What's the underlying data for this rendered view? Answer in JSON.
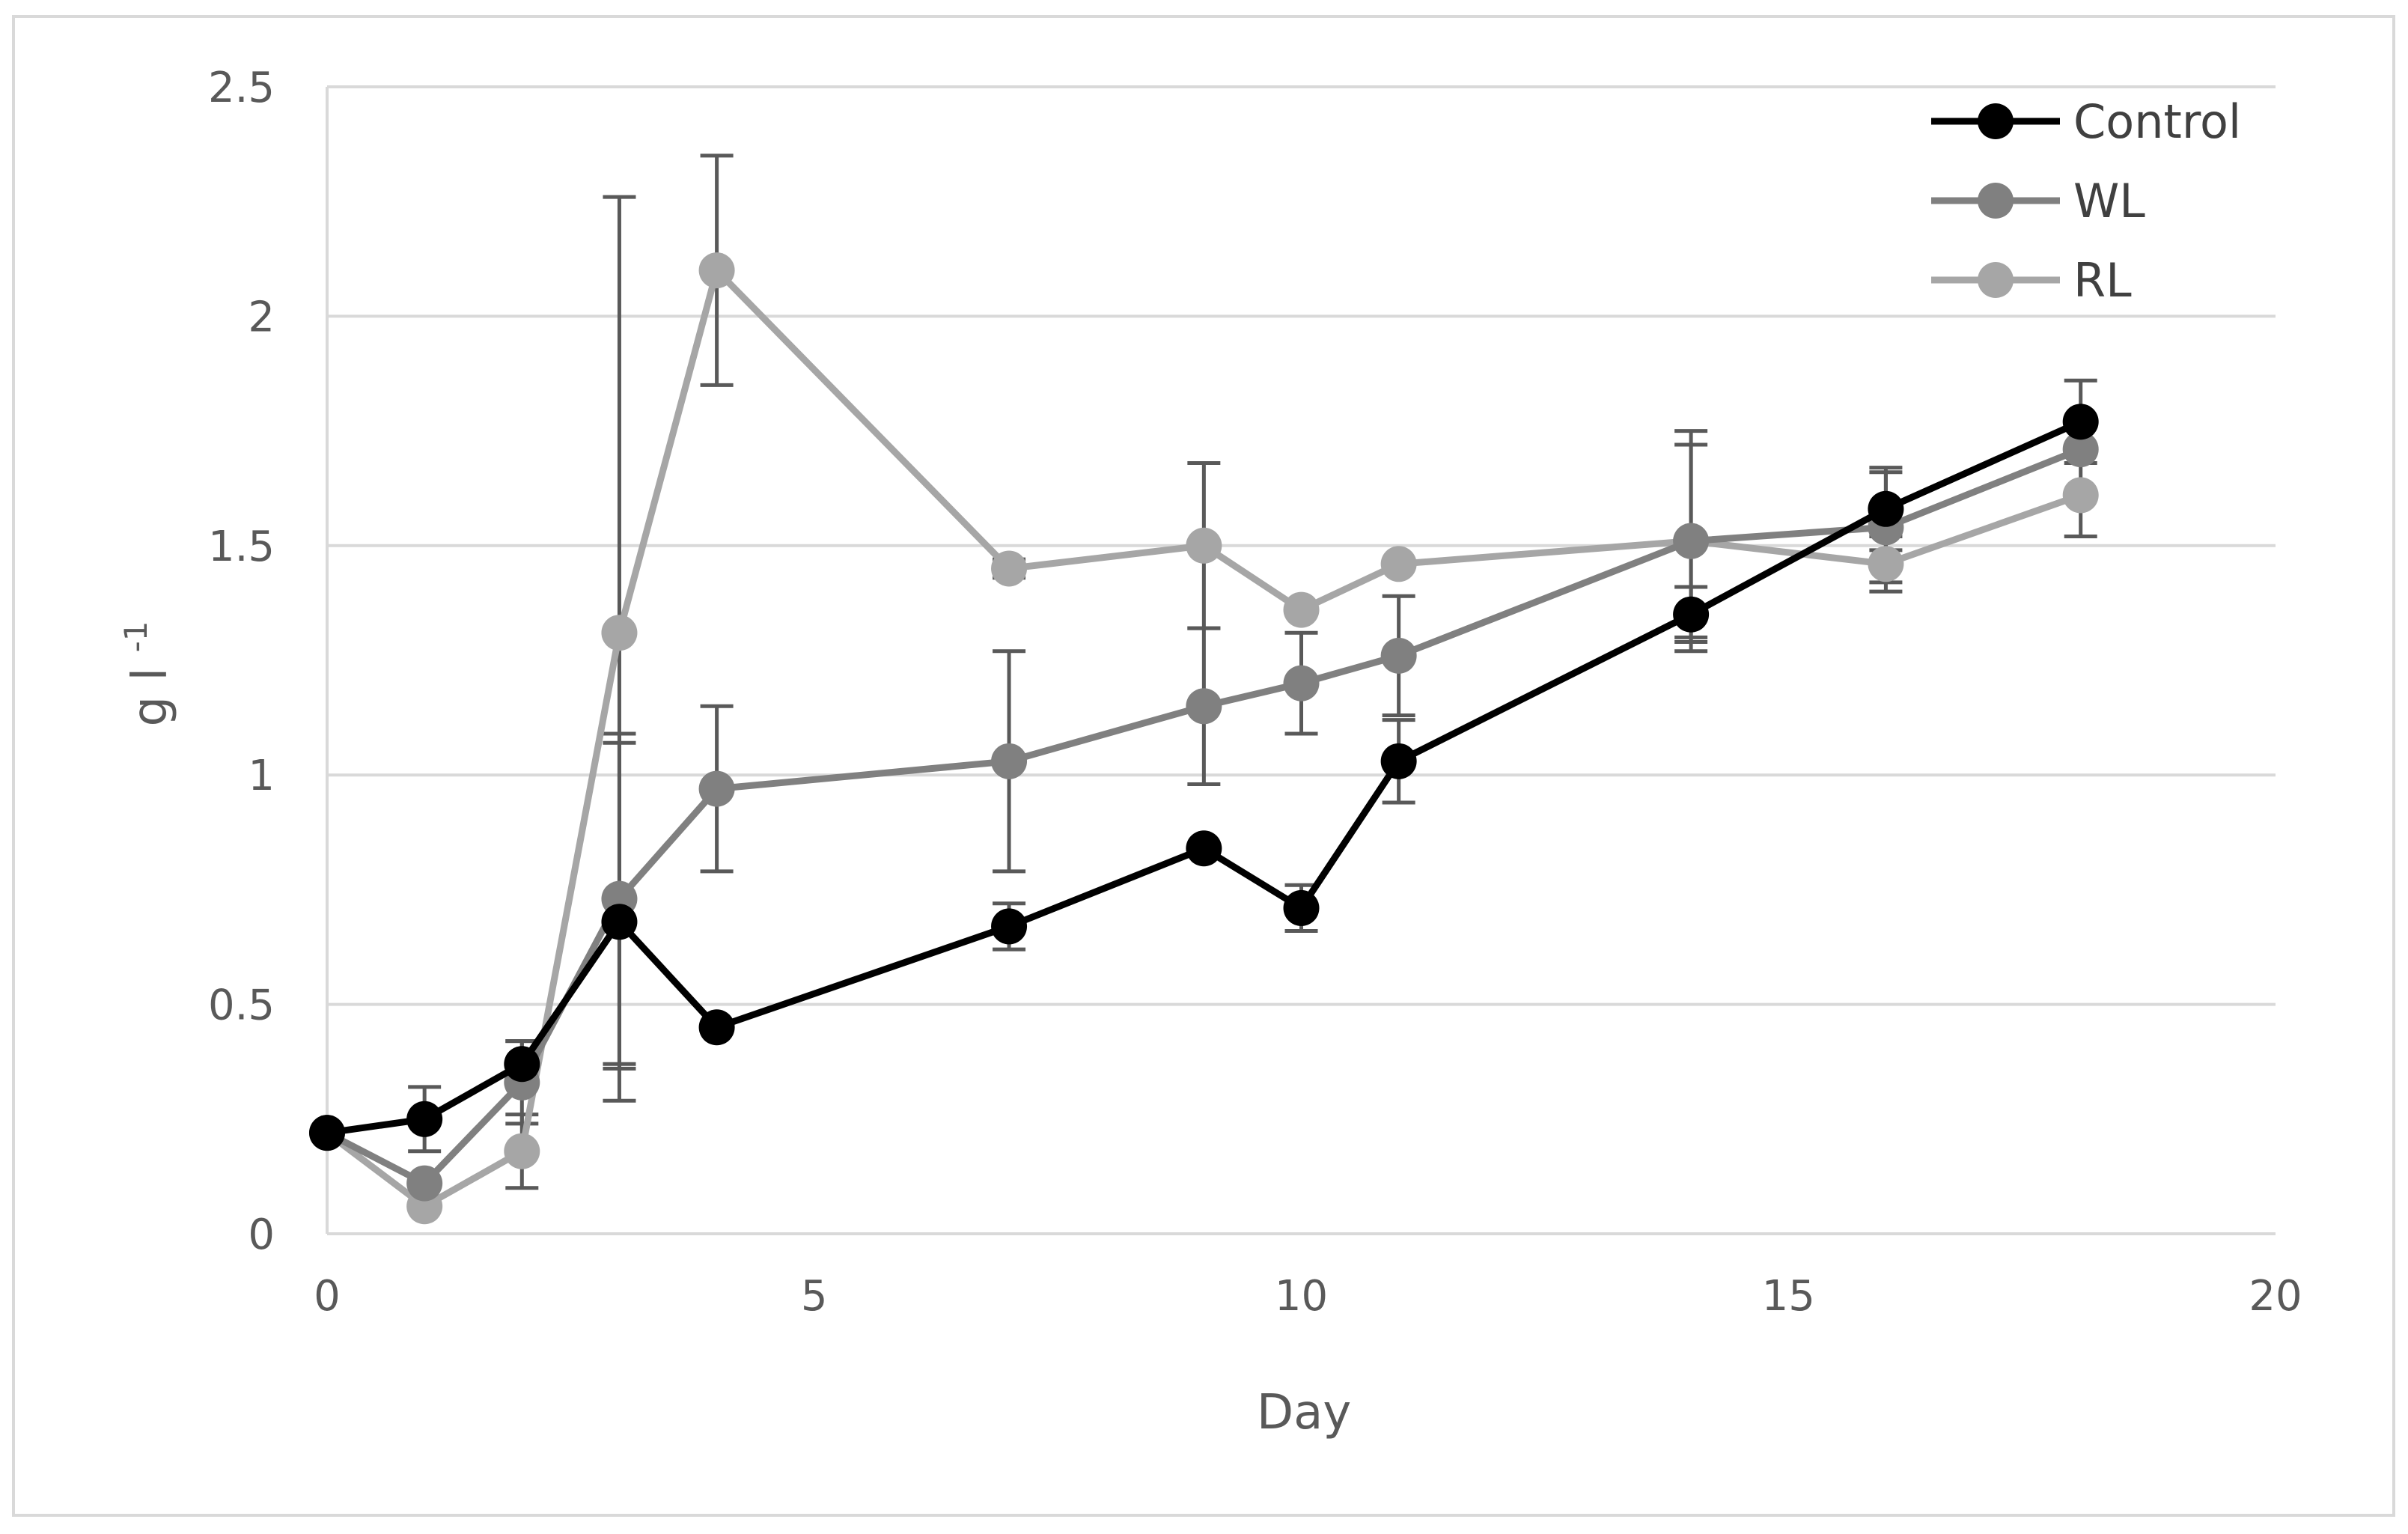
{
  "chart_data": {
    "type": "line",
    "title": "",
    "xlabel": "Day",
    "ylabel_main": "g l",
    "ylabel_sup": "-1",
    "xlim": [
      0,
      20
    ],
    "ylim": [
      0,
      2.5
    ],
    "x_ticks": [
      0,
      5,
      10,
      15,
      20
    ],
    "y_ticks": [
      0,
      0.5,
      1,
      1.5,
      2,
      2.5
    ],
    "x_tick_labels": [
      "0",
      "5",
      "10",
      "15",
      "20"
    ],
    "y_tick_labels": [
      "0",
      "0.5",
      "1",
      "1.5",
      "2",
      "2.5"
    ],
    "grid": "horizontal",
    "legend_position": "top-right",
    "series": [
      {
        "name": "Control",
        "color": "#000000",
        "x": [
          0,
          1,
          2,
          3,
          4,
          7,
          9,
          10,
          11,
          14,
          16,
          18
        ],
        "y": [
          0.22,
          0.25,
          0.37,
          0.68,
          0.45,
          0.67,
          0.84,
          0.71,
          1.03,
          1.35,
          1.58,
          1.77
        ],
        "err": [
          0,
          0.07,
          0.05,
          0.39,
          0,
          0.05,
          0,
          0.05,
          0.09,
          0.06,
          0.09,
          0.09
        ]
      },
      {
        "name": "WL",
        "color": "#808080",
        "x": [
          0,
          1,
          2,
          3,
          4,
          7,
          9,
          10,
          11,
          14,
          16,
          18
        ],
        "y": [
          0.22,
          0.11,
          0.33,
          0.73,
          0.97,
          1.03,
          1.15,
          1.2,
          1.26,
          1.51,
          1.54,
          1.71
        ],
        "err": [
          0,
          0,
          0.09,
          0.36,
          0.18,
          0.24,
          0.17,
          0.11,
          0.13,
          0.21,
          0.12,
          0
        ]
      },
      {
        "name": "RL",
        "color": "#a6a6a6",
        "x": [
          0,
          1,
          2,
          3,
          4,
          7,
          9,
          10,
          11,
          14,
          16,
          18
        ],
        "y": [
          0.22,
          0.06,
          0.18,
          1.31,
          2.1,
          1.45,
          1.5,
          1.36,
          1.46,
          1.51,
          1.46,
          1.61
        ],
        "err": [
          0,
          0,
          0.08,
          0.95,
          0.25,
          0.02,
          0.18,
          0,
          0,
          0.24,
          0.06,
          0.09
        ]
      }
    ]
  }
}
